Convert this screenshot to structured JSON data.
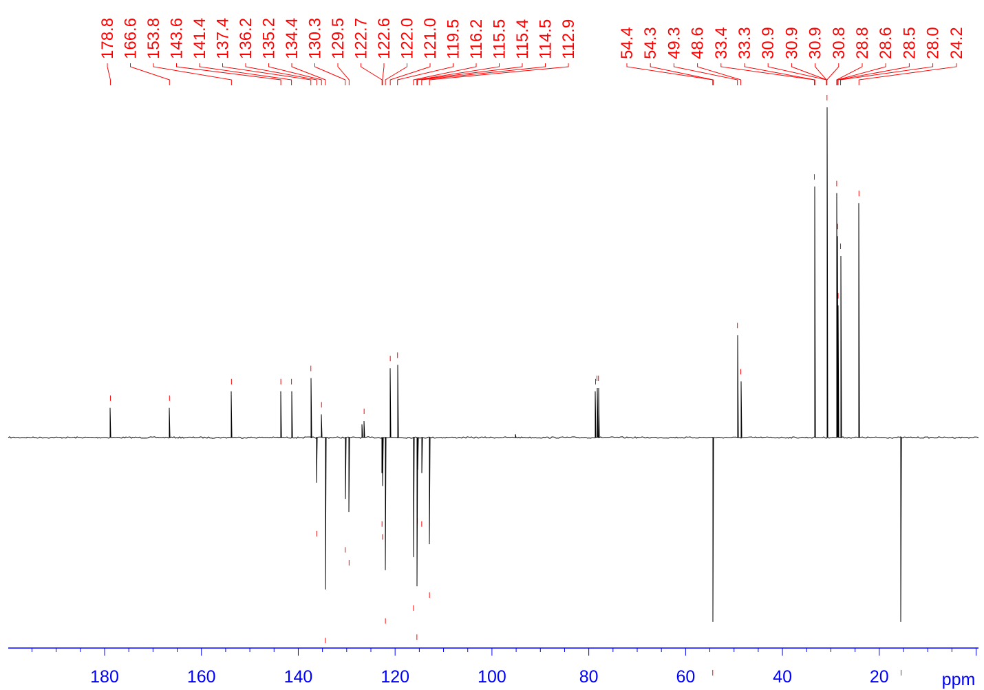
{
  "chart_data": {
    "type": "line",
    "title": "",
    "xlabel": "ppm",
    "ylabel": "",
    "x_axis": {
      "unit": "ppm",
      "reversed": true,
      "xlim": [
        200,
        0
      ],
      "major_ticks": [
        180,
        160,
        140,
        120,
        100,
        80,
        60,
        40,
        20
      ],
      "tick_labels": [
        "180",
        "160",
        "140",
        "120",
        "100",
        "80",
        "60",
        "40",
        "20"
      ]
    },
    "grid": false,
    "colors": {
      "spectrum": "#000000",
      "labels": "#ff0000",
      "axis": "#0000ff"
    },
    "peak_labels": {
      "aromatic_group": [
        "178.8",
        "166.6",
        "153.8",
        "143.6",
        "141.4",
        "137.4",
        "136.2",
        "135.2",
        "134.4",
        "130.3",
        "129.5",
        "122.7",
        "122.6",
        "122.0",
        "121.0",
        "119.5",
        "116.2",
        "115.5",
        "115.4",
        "114.5",
        "112.9"
      ],
      "aliphatic_group": [
        "54.4",
        "54.3",
        "49.3",
        "48.6",
        "33.4",
        "33.3",
        "30.9",
        "30.9",
        "30.9",
        "30.8",
        "28.8",
        "28.6",
        "28.5",
        "28.0",
        "24.2"
      ]
    },
    "series": [
      {
        "values_relative_intensity": [
          {
            "ppm": 178.8,
            "intensity": 0.09
          },
          {
            "ppm": 166.6,
            "intensity": 0.09
          },
          {
            "ppm": 153.8,
            "intensity": 0.14
          },
          {
            "ppm": 143.6,
            "intensity": 0.14
          },
          {
            "ppm": 141.4,
            "intensity": 0.14
          },
          {
            "ppm": 137.4,
            "intensity": 0.18
          },
          {
            "ppm": 136.2,
            "intensity": -0.14
          },
          {
            "ppm": 135.2,
            "intensity": 0.07
          },
          {
            "ppm": 134.4,
            "intensity": -0.47
          },
          {
            "ppm": 130.3,
            "intensity": -0.19
          },
          {
            "ppm": 129.5,
            "intensity": -0.23
          },
          {
            "ppm": 126.9,
            "intensity": 0.04
          },
          {
            "ppm": 126.4,
            "intensity": 0.05
          },
          {
            "ppm": 122.7,
            "intensity": -0.11
          },
          {
            "ppm": 122.6,
            "intensity": -0.15
          },
          {
            "ppm": 122.0,
            "intensity": -0.41
          },
          {
            "ppm": 121.0,
            "intensity": 0.21
          },
          {
            "ppm": 119.5,
            "intensity": 0.22
          },
          {
            "ppm": 116.2,
            "intensity": -0.37
          },
          {
            "ppm": 115.5,
            "intensity": -0.46
          },
          {
            "ppm": 115.4,
            "intensity": -0.1
          },
          {
            "ppm": 114.5,
            "intensity": -0.11
          },
          {
            "ppm": 112.9,
            "intensity": -0.33
          },
          {
            "ppm": 95.2,
            "intensity": 0.01
          },
          {
            "ppm": 78.6,
            "intensity": 0.14
          },
          {
            "ppm": 78.3,
            "intensity": 0.15
          },
          {
            "ppm": 78.0,
            "intensity": 0.15
          },
          {
            "ppm": 54.4,
            "intensity": -0.57
          },
          {
            "ppm": 49.3,
            "intensity": 0.31
          },
          {
            "ppm": 48.6,
            "intensity": 0.17
          },
          {
            "ppm": 33.4,
            "intensity": 0.76
          },
          {
            "ppm": 30.8,
            "intensity": 1.0
          },
          {
            "ppm": 28.8,
            "intensity": 0.74
          },
          {
            "ppm": 28.6,
            "intensity": 0.61
          },
          {
            "ppm": 28.5,
            "intensity": 0.4
          },
          {
            "ppm": 28.0,
            "intensity": 0.55
          },
          {
            "ppm": 24.2,
            "intensity": 0.71
          },
          {
            "ppm": 15.5,
            "intensity": -0.57
          }
        ]
      }
    ]
  }
}
